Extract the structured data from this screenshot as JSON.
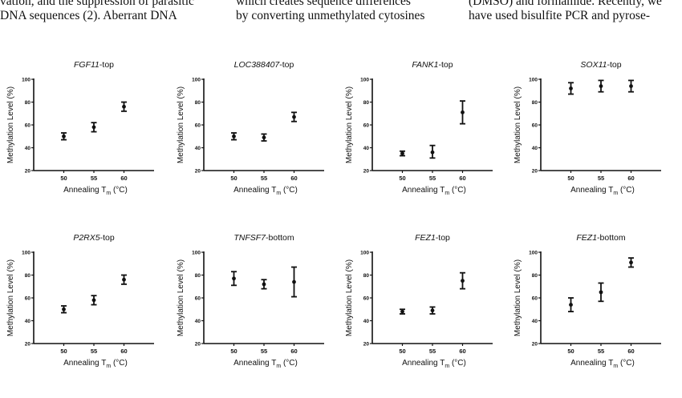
{
  "text": {
    "col1": {
      "line1": "vation, and the suppression of parasitic",
      "line2": "DNA sequences (2). Aberrant DNA"
    },
    "col2": {
      "line1": "which creates sequence differences",
      "line2": "by converting unmethylated cytosines"
    },
    "col3": {
      "line1": "(DMSO) and formamide. Recently, we",
      "line2": "have used bisulfite PCR and pyrose-"
    }
  },
  "chart_data": [
    {
      "type": "scatter",
      "title_italic": "FGF11",
      "title_rest": "-top",
      "ylabel": "Methylation Level (%)",
      "xlabel_pre": "Annealing T",
      "xlabel_sub": "m",
      "xlabel_post": " (°C)",
      "x": [
        50,
        55,
        60
      ],
      "y": [
        50,
        58,
        76
      ],
      "err_low": [
        47,
        54,
        72
      ],
      "err_high": [
        53,
        62,
        80
      ],
      "ylim": [
        20,
        100
      ],
      "yticks": [
        20,
        40,
        60,
        80,
        100
      ]
    },
    {
      "type": "scatter",
      "title_italic": "LOC388407",
      "title_rest": "-top",
      "ylabel": "Methylation Level (%)",
      "xlabel_pre": "Annealing T",
      "xlabel_sub": "m",
      "xlabel_post": " (°C)",
      "x": [
        50,
        55,
        60
      ],
      "y": [
        50,
        49,
        67
      ],
      "err_low": [
        47,
        46,
        63
      ],
      "err_high": [
        53,
        52,
        71
      ],
      "ylim": [
        20,
        100
      ],
      "yticks": [
        20,
        40,
        60,
        80,
        100
      ]
    },
    {
      "type": "scatter",
      "title_italic": "FANK1",
      "title_rest": "-top",
      "ylabel": "Methylation Level (%)",
      "xlabel_pre": "Annealing T",
      "xlabel_sub": "m",
      "xlabel_post": " (°C)",
      "x": [
        50,
        55,
        60
      ],
      "y": [
        35,
        36,
        71
      ],
      "err_low": [
        33,
        31,
        61
      ],
      "err_high": [
        37,
        42,
        81
      ],
      "ylim": [
        20,
        100
      ],
      "yticks": [
        20,
        40,
        60,
        80,
        100
      ]
    },
    {
      "type": "scatter",
      "title_italic": "SOX11",
      "title_rest": "-top",
      "ylabel": "Methylation Level (%)",
      "xlabel_pre": "Annealing T",
      "xlabel_sub": "m",
      "xlabel_post": " (°C)",
      "x": [
        50,
        55,
        60
      ],
      "y": [
        92,
        94,
        94
      ],
      "err_low": [
        87,
        89,
        89
      ],
      "err_high": [
        97,
        99,
        99
      ],
      "ylim": [
        20,
        100
      ],
      "yticks": [
        20,
        40,
        60,
        80,
        100
      ]
    },
    {
      "type": "scatter",
      "title_italic": "P2RX5",
      "title_rest": "-top",
      "ylabel": "Methylation Level (%)",
      "xlabel_pre": "Annealing T",
      "xlabel_sub": "m",
      "xlabel_post": " (°C)",
      "x": [
        50,
        55,
        60
      ],
      "y": [
        50,
        58,
        76
      ],
      "err_low": [
        47,
        54,
        72
      ],
      "err_high": [
        53,
        62,
        80
      ],
      "ylim": [
        20,
        100
      ],
      "yticks": [
        20,
        40,
        60,
        80,
        100
      ]
    },
    {
      "type": "scatter",
      "title_italic": "TNFSF7",
      "title_rest": "-bottom",
      "ylabel": "Methylation Level (%)",
      "xlabel_pre": "Annealing T",
      "xlabel_sub": "m",
      "xlabel_post": " (°C)",
      "x": [
        50,
        55,
        60
      ],
      "y": [
        77,
        72,
        74
      ],
      "err_low": [
        71,
        68,
        61
      ],
      "err_high": [
        83,
        76,
        87
      ],
      "ylim": [
        20,
        100
      ],
      "yticks": [
        20,
        40,
        60,
        80,
        100
      ]
    },
    {
      "type": "scatter",
      "title_italic": "FEZ1",
      "title_rest": "-top",
      "ylabel": "Methylation Level (%)",
      "xlabel_pre": "Annealing T",
      "xlabel_sub": "m",
      "xlabel_post": " (°C)",
      "x": [
        50,
        55,
        60
      ],
      "y": [
        48,
        49,
        75
      ],
      "err_low": [
        46,
        46,
        68
      ],
      "err_high": [
        50,
        52,
        82
      ],
      "ylim": [
        20,
        100
      ],
      "yticks": [
        20,
        40,
        60,
        80,
        100
      ]
    },
    {
      "type": "scatter",
      "title_italic": "FEZ1",
      "title_rest": "-bottom",
      "ylabel": "Methylation Level (%)",
      "xlabel_pre": "Annealing T",
      "xlabel_sub": "m",
      "xlabel_post": " (°C)",
      "x": [
        50,
        55,
        60
      ],
      "y": [
        54,
        65,
        91
      ],
      "err_low": [
        48,
        57,
        87
      ],
      "err_high": [
        60,
        73,
        95
      ],
      "ylim": [
        20,
        100
      ],
      "yticks": [
        20,
        40,
        60,
        80,
        100
      ]
    }
  ]
}
